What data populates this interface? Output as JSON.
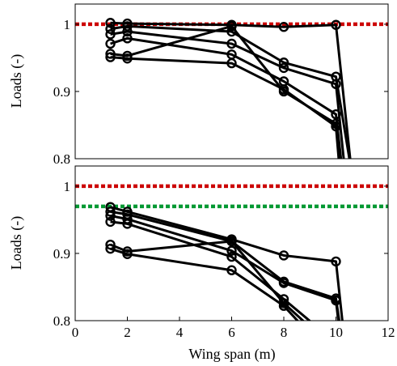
{
  "chart_data": [
    {
      "type": "line",
      "title": "",
      "xlabel": "",
      "ylabel": "Loads (-)",
      "xlim": [
        0,
        12
      ],
      "ylim": [
        0.8,
        1.03
      ],
      "yticks": [
        0.8,
        0.9,
        1
      ],
      "ytick_labels": [
        "0.8",
        "0.9",
        "1"
      ],
      "grid": false,
      "legend": "none",
      "reference_lines": [
        {
          "y": 1.0,
          "style": "dotted",
          "color": "#cc0000"
        }
      ],
      "series": [
        {
          "x": [
            1.35,
            2,
            6,
            8,
            10,
            10.6
          ],
          "y": [
            1.002,
            1.001,
            0.999,
            0.996,
            0.999,
            0.78
          ]
        },
        {
          "x": [
            1.35,
            2,
            6,
            8,
            10,
            10.6
          ],
          "y": [
            0.993,
            0.997,
            0.989,
            0.943,
            0.922,
            0.78
          ]
        },
        {
          "x": [
            1.35,
            2,
            6,
            8,
            10,
            10.35
          ],
          "y": [
            0.985,
            0.989,
            0.971,
            0.935,
            0.911,
            0.78
          ]
        },
        {
          "x": [
            1.35,
            2,
            6,
            8,
            10,
            10.25
          ],
          "y": [
            0.971,
            0.979,
            0.955,
            0.915,
            0.866,
            0.78
          ]
        },
        {
          "x": [
            1.35,
            2,
            6,
            8,
            10,
            10.2
          ],
          "y": [
            0.956,
            0.953,
            0.997,
            0.9,
            0.852,
            0.78
          ]
        },
        {
          "x": [
            1.35,
            2,
            6,
            8,
            10,
            10.15
          ],
          "y": [
            0.951,
            0.949,
            0.942,
            0.903,
            0.848,
            0.78
          ]
        }
      ]
    },
    {
      "type": "line",
      "title": "",
      "xlabel": "Wing span (m)",
      "ylabel": "Loads (-)",
      "xlim": [
        0,
        12
      ],
      "ylim": [
        0.8,
        1.03
      ],
      "xticks": [
        0,
        2,
        4,
        6,
        8,
        10,
        12
      ],
      "xtick_labels": [
        "0",
        "2",
        "4",
        "6",
        "8",
        "10",
        "12"
      ],
      "yticks": [
        0.8,
        0.9,
        1
      ],
      "ytick_labels": [
        "0.8",
        "0.9",
        "1"
      ],
      "grid": false,
      "legend": "none",
      "reference_lines": [
        {
          "y": 1.0,
          "style": "dotted",
          "color": "#cc0000"
        },
        {
          "y": 0.97,
          "style": "dotted",
          "color": "#009933"
        }
      ],
      "series": [
        {
          "x": [
            1.35,
            2,
            6,
            8,
            10,
            10.3
          ],
          "y": [
            0.969,
            0.962,
            0.921,
            0.897,
            0.888,
            0.78
          ]
        },
        {
          "x": [
            1.35,
            2,
            6,
            8,
            10,
            10.2
          ],
          "y": [
            0.962,
            0.958,
            0.918,
            0.858,
            0.833,
            0.78
          ]
        },
        {
          "x": [
            1.35,
            2,
            6,
            8,
            10,
            10.15
          ],
          "y": [
            0.956,
            0.951,
            0.904,
            0.856,
            0.83,
            0.78
          ]
        },
        {
          "x": [
            1.35,
            2,
            6,
            8,
            9.6
          ],
          "y": [
            0.947,
            0.944,
            0.895,
            0.832,
            0.78
          ]
        },
        {
          "x": [
            1.35,
            2,
            6,
            8,
            9.3
          ],
          "y": [
            0.913,
            0.903,
            0.918,
            0.826,
            0.78
          ]
        },
        {
          "x": [
            1.35,
            2,
            6,
            8,
            9.0
          ],
          "y": [
            0.907,
            0.899,
            0.875,
            0.822,
            0.78
          ]
        }
      ]
    }
  ]
}
